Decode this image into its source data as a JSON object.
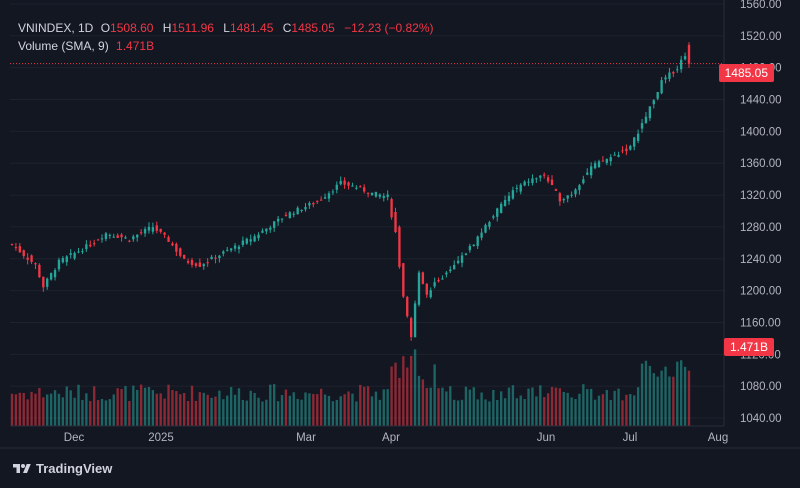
{
  "legend": {
    "symbol": "VNINDEX, 1D",
    "open_key": "O",
    "open": "1508.60",
    "high_key": "H",
    "high": "1511.96",
    "low_key": "L",
    "low": "1481.45",
    "close_key": "C",
    "close": "1485.05",
    "change": "−12.23 (−0.82%)",
    "volume_label": "Volume (SMA, 9)",
    "volume_value": "1.471B"
  },
  "badges": {
    "price": "1485.05",
    "volume": "1.471B"
  },
  "brand": {
    "name": "TradingView",
    "logo": "tradingview-logo"
  },
  "colors": {
    "up": "#26a69a",
    "down": "#f23645",
    "background": "#131722",
    "grid": "#1e222d",
    "text": "#b2b5be"
  },
  "chart_data": {
    "type": "candlestick",
    "symbol": "VNINDEX",
    "interval": "1D",
    "price_axis": {
      "range": [
        1030,
        1565
      ],
      "ticks": [
        "1560.00",
        "1520.00",
        "1480.00",
        "1440.00",
        "1400.00",
        "1360.00",
        "1320.00",
        "1280.00",
        "1240.00",
        "1200.00",
        "1160.00",
        "1120.00",
        "1080.00",
        "1040.00"
      ]
    },
    "time_axis": {
      "labels": [
        "Dec",
        "2025",
        "Mar",
        "Apr",
        "Jun",
        "Jul",
        "Aug"
      ]
    },
    "last_price": 1485.05,
    "last_volume": "1.471B",
    "volume_overlay": true,
    "grid": true,
    "keyframes": [
      {
        "i": 0,
        "close": 1258
      },
      {
        "i": 6,
        "close": 1232
      },
      {
        "i": 8,
        "close": 1205
      },
      {
        "i": 12,
        "close": 1236
      },
      {
        "i": 20,
        "close": 1258
      },
      {
        "i": 24,
        "close": 1272
      },
      {
        "i": 30,
        "close": 1265
      },
      {
        "i": 36,
        "close": 1280
      },
      {
        "i": 40,
        "close": 1263
      },
      {
        "i": 44,
        "close": 1238
      },
      {
        "i": 48,
        "close": 1232
      },
      {
        "i": 55,
        "close": 1250
      },
      {
        "i": 62,
        "close": 1268
      },
      {
        "i": 70,
        "close": 1295
      },
      {
        "i": 78,
        "close": 1312
      },
      {
        "i": 84,
        "close": 1335
      },
      {
        "i": 88,
        "close": 1330
      },
      {
        "i": 92,
        "close": 1322
      },
      {
        "i": 96,
        "close": 1318
      },
      {
        "i": 98,
        "close": 1272
      },
      {
        "i": 100,
        "close": 1190
      },
      {
        "i": 102,
        "close": 1140
      },
      {
        "i": 104,
        "close": 1225
      },
      {
        "i": 106,
        "close": 1195
      },
      {
        "i": 108,
        "close": 1210
      },
      {
        "i": 112,
        "close": 1225
      },
      {
        "i": 118,
        "close": 1260
      },
      {
        "i": 123,
        "close": 1295
      },
      {
        "i": 128,
        "close": 1325
      },
      {
        "i": 132,
        "close": 1338
      },
      {
        "i": 136,
        "close": 1345
      },
      {
        "i": 140,
        "close": 1315
      },
      {
        "i": 143,
        "close": 1322
      },
      {
        "i": 148,
        "close": 1355
      },
      {
        "i": 154,
        "close": 1370
      },
      {
        "i": 158,
        "close": 1380
      },
      {
        "i": 162,
        "close": 1420
      },
      {
        "i": 166,
        "close": 1462
      },
      {
        "i": 170,
        "close": 1480
      },
      {
        "i": 172,
        "close": 1497
      },
      {
        "i": 173,
        "close": 1485.05
      }
    ]
  }
}
